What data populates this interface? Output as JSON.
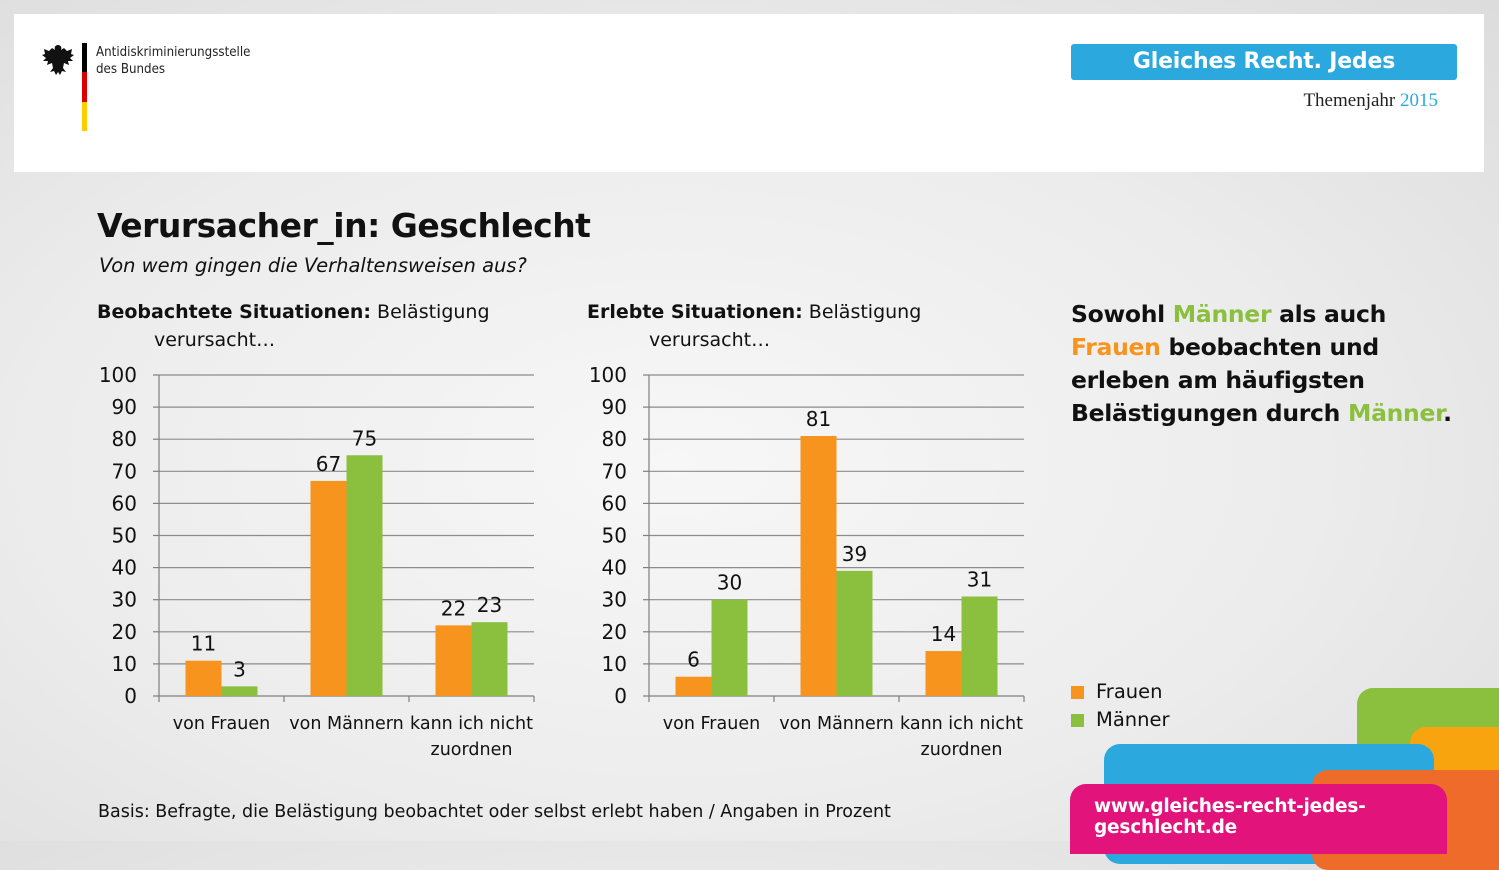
{
  "header": {
    "agency_line1": "Antidiskriminierungsstelle",
    "agency_line2": "des Bundes",
    "slogan": "Gleiches Recht. Jedes Geschlecht.",
    "themenjahr_label": "Themenjahr",
    "themenjahr_year": "2015",
    "flag_colors": [
      "#000000",
      "#dd0000",
      "#ffcc00"
    ]
  },
  "title": "Verursacher_in: Geschlecht",
  "subtitle": "Von wem gingen die Verhaltensweisen aus?",
  "charts": [
    {
      "bold": "Beobachtete Situationen:",
      "rest": "Belästigung",
      "line2": "verursacht…"
    },
    {
      "bold": "Erlebte Situationen:",
      "rest": "Belästigung",
      "line2": "verursacht…"
    }
  ],
  "statement": {
    "p1": "Sowohl ",
    "p2": "Männer",
    "p3": " als auch ",
    "p4": "Frauen",
    "p5": " beobachten und erleben am häufigsten Belästigungen durch ",
    "p6": "Männer",
    "p7": "."
  },
  "legend": [
    {
      "label": "Frauen",
      "color": "#f7941d"
    },
    {
      "label": "Männer",
      "color": "#8bbf3e"
    }
  ],
  "basis": "Basis: Befragte, die Belästigung beobachtet oder selbst erlebt haben / Angaben in Prozent",
  "footer_url": "www.gleiches-recht-jedes-geschlecht.de",
  "colors": {
    "frauen": "#f7941d",
    "maenner": "#8bbf3e",
    "slogan_bg": "#2ba9df",
    "url_bg": "#e2147c"
  },
  "chart_data": [
    {
      "type": "bar",
      "categories": [
        "von Frauen",
        "von Männern",
        "kann ich nicht zuordnen"
      ],
      "series": [
        {
          "name": "Frauen",
          "values": [
            11,
            67,
            22
          ]
        },
        {
          "name": "Männer",
          "values": [
            3,
            75,
            23
          ]
        }
      ],
      "ylim": [
        0,
        100
      ],
      "yticks": [
        0,
        10,
        20,
        30,
        40,
        50,
        60,
        70,
        80,
        90,
        100
      ],
      "grid": true
    },
    {
      "type": "bar",
      "categories": [
        "von Frauen",
        "von Männern",
        "kann ich nicht zuordnen"
      ],
      "series": [
        {
          "name": "Frauen",
          "values": [
            6,
            81,
            14
          ]
        },
        {
          "name": "Männer",
          "values": [
            30,
            39,
            31
          ]
        }
      ],
      "ylim": [
        0,
        100
      ],
      "yticks": [
        0,
        10,
        20,
        30,
        40,
        50,
        60,
        70,
        80,
        90,
        100
      ],
      "grid": true
    }
  ]
}
